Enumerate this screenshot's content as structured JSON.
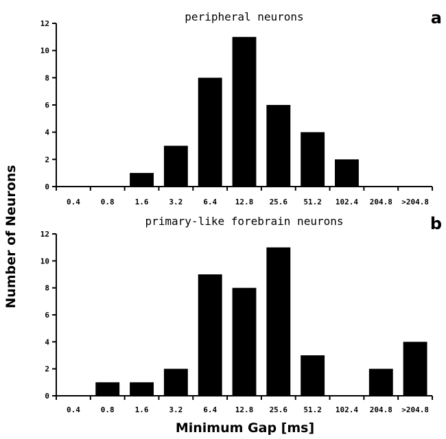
{
  "figure": {
    "ylabel": "Number of Neurons",
    "xlabel": "Minimum Gap [ms]"
  },
  "chart_data": [
    {
      "type": "bar",
      "panel_letter": "a",
      "title": "peripheral neurons",
      "categories": [
        "0.4",
        "0.8",
        "1.6",
        "3.2",
        "6.4",
        "12.8",
        "25.6",
        "51.2",
        "102.4",
        "204.8",
        ">204.8"
      ],
      "values": [
        0,
        0,
        1,
        3,
        8,
        11,
        6,
        4,
        2,
        0,
        0
      ],
      "yticks": [
        "0",
        "2",
        "4",
        "6",
        "8",
        "10",
        "12"
      ],
      "ylim": [
        0,
        12
      ],
      "bar_color": "#000000"
    },
    {
      "type": "bar",
      "panel_letter": "b",
      "title": "primary-like forebrain neurons",
      "categories": [
        "0.4",
        "0.8",
        "1.6",
        "3.2",
        "6.4",
        "12.8",
        "25.6",
        "51.2",
        "102.4",
        "204.8",
        ">204.8"
      ],
      "values": [
        0,
        1,
        1,
        2,
        9,
        8,
        11,
        3,
        0,
        2,
        4
      ],
      "yticks": [
        "0",
        "2",
        "4",
        "6",
        "8",
        "10",
        "12"
      ],
      "ylim": [
        0,
        12
      ],
      "bar_color": "#000000"
    }
  ]
}
